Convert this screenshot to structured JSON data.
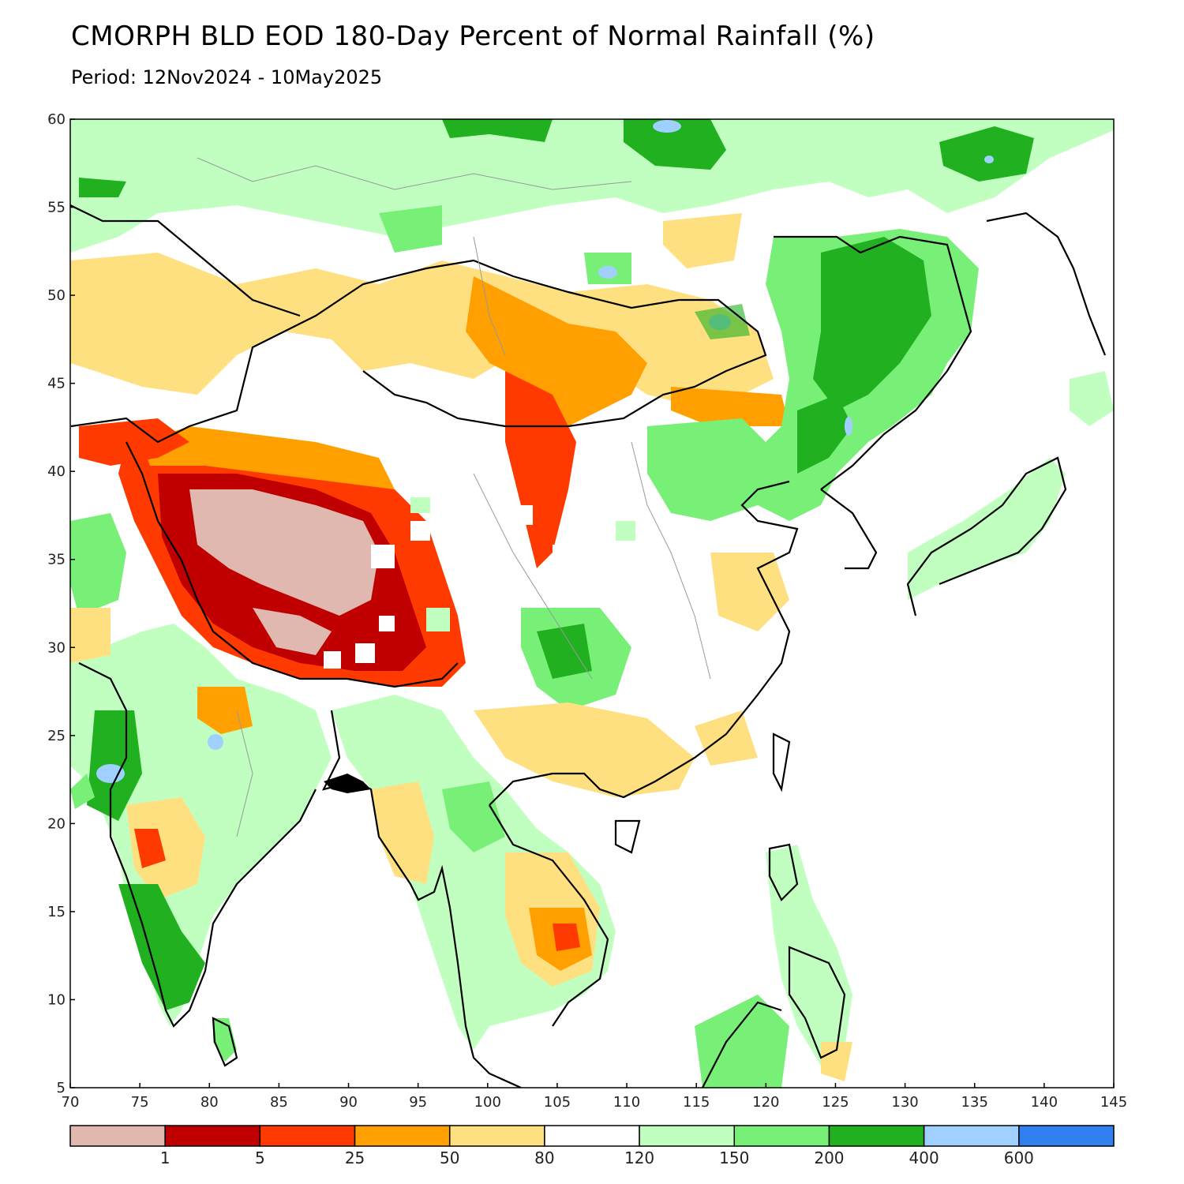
{
  "title": "CMORPH BLD EOD 180-Day Percent of Normal Rainfall (%)",
  "subtitle": "Period: 12Nov2024 - 10May2025",
  "map": {
    "lon_ticks": [
      "70",
      "75",
      "80",
      "85",
      "90",
      "95",
      "100",
      "105",
      "110",
      "115",
      "120",
      "125",
      "130",
      "135",
      "140",
      "145"
    ],
    "lat_ticks": [
      "60",
      "55",
      "50",
      "45",
      "40",
      "35",
      "30",
      "25",
      "20",
      "15",
      "10",
      "5"
    ],
    "lon_range": [
      70,
      145
    ],
    "lat_range": [
      5,
      60
    ]
  },
  "colorbar": {
    "colors": [
      "#e0b8b0",
      "#c00000",
      "#ff3a00",
      "#ffa000",
      "#ffe080",
      "#ffffff",
      "#c0ffc0",
      "#78f078",
      "#20b020",
      "#a0d0ff",
      "#3080f0"
    ],
    "labels": [
      "1",
      "5",
      "25",
      "50",
      "80",
      "120",
      "150",
      "200",
      "400",
      "600"
    ]
  }
}
